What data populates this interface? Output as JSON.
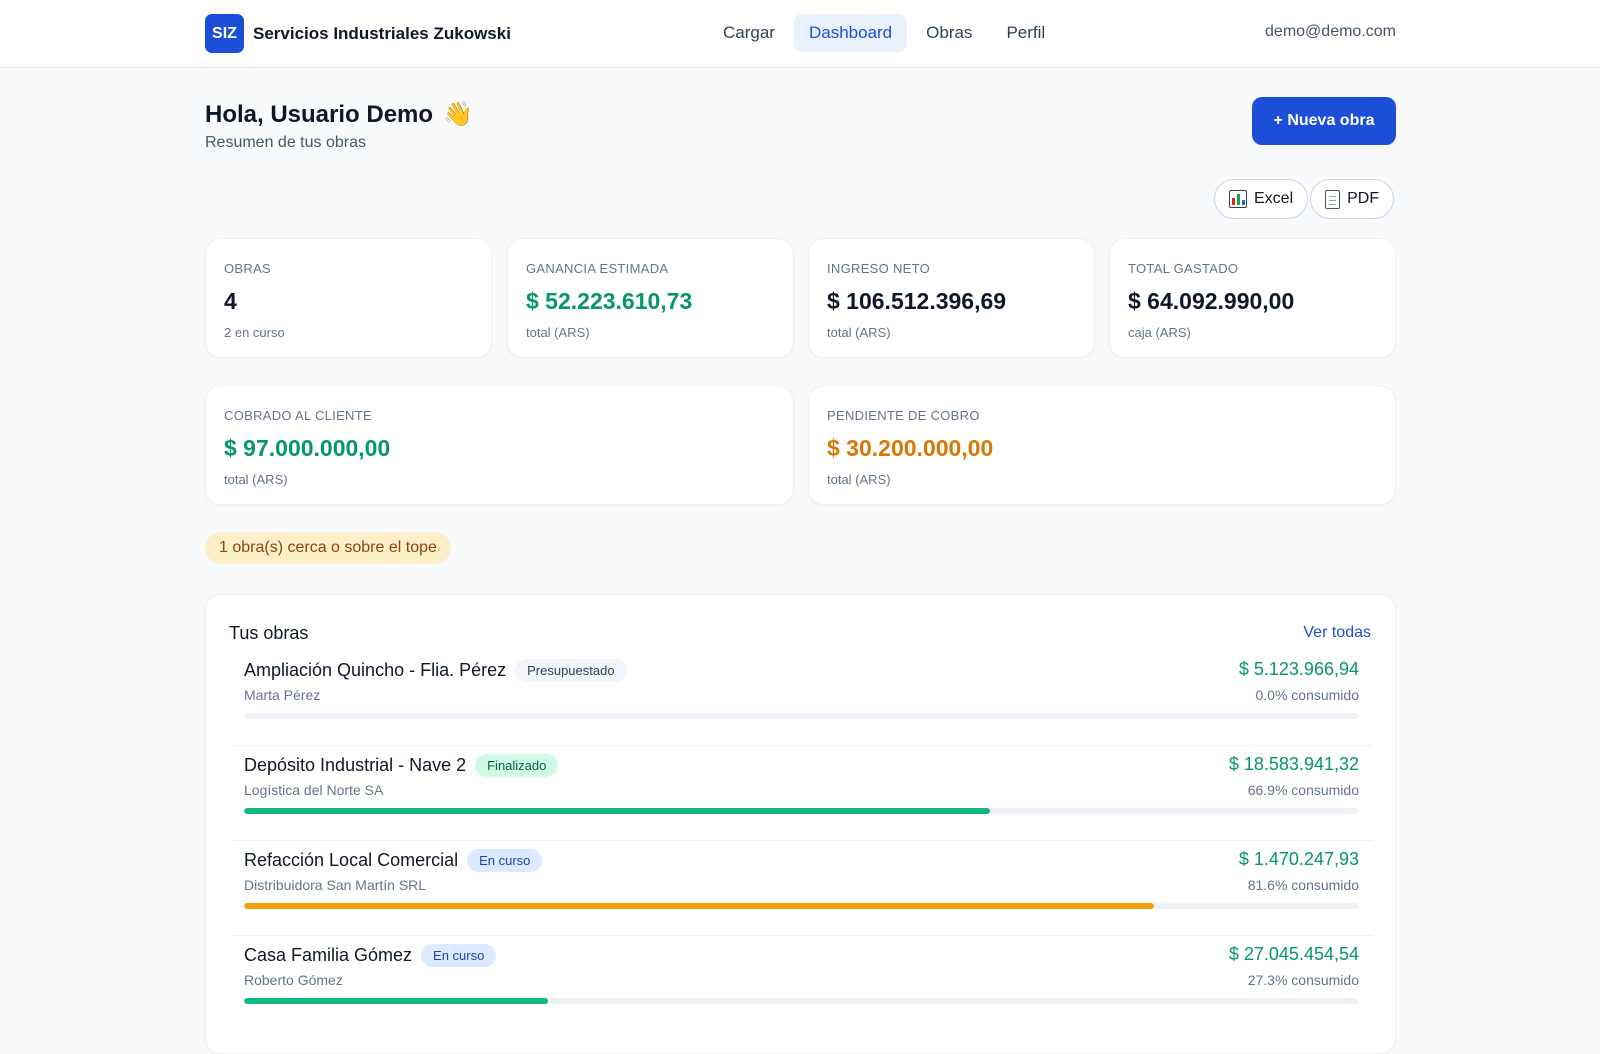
{
  "header": {
    "logo": "SIZ",
    "brand": "Servicios Industriales Zukowski",
    "nav": [
      "Cargar",
      "Dashboard",
      "Obras",
      "Perfil"
    ],
    "active_nav": "Dashboard",
    "user_email": "demo@demo.com"
  },
  "greeting": {
    "title": "Hola, Usuario Demo",
    "emoji": "👋",
    "subtitle": "Resumen de tus obras"
  },
  "actions": {
    "new_obra": "+ Nueva obra",
    "export_excel": "Excel",
    "export_pdf": "PDF"
  },
  "stats": [
    {
      "label": "OBRAS",
      "value": "4",
      "sub": "2 en curso",
      "color": "#0f172a"
    },
    {
      "label": "GANANCIA ESTIMADA",
      "value": "$ 52.223.610,73",
      "sub": "total (ARS)",
      "color": "#059669"
    },
    {
      "label": "INGRESO NETO",
      "value": "$ 106.512.396,69",
      "sub": "total (ARS)",
      "color": "#0f172a"
    },
    {
      "label": "TOTAL GASTADO",
      "value": "$ 64.092.990,00",
      "sub": "caja (ARS)",
      "color": "#0f172a"
    }
  ],
  "stats2": [
    {
      "label": "COBRADO AL CLIENTE",
      "value": "$ 97.000.000,00",
      "sub": "total (ARS)",
      "color": "#059669"
    },
    {
      "label": "PENDIENTE DE COBRO",
      "value": "$ 30.200.000,00",
      "sub": "total (ARS)",
      "color": "#d97706"
    }
  ],
  "alert": "1 obra(s) cerca o sobre el tope",
  "obras_panel": {
    "title": "Tus obras",
    "link": "Ver todas",
    "items": [
      {
        "name": "Ampliación Quincho - Flia. Pérez",
        "status": "Presupuestado",
        "client": "Marta Pérez",
        "amount": "$ 5.123.966,94",
        "consumed": "0.0% consumido",
        "progress": 0.0,
        "bar_color": "#10b981"
      },
      {
        "name": "Depósito Industrial - Nave 2",
        "status": "Finalizado",
        "client": "Logística del Norte SA",
        "amount": "$ 18.583.941,32",
        "consumed": "66.9% consumido",
        "progress": 66.9,
        "bar_color": "#10b981"
      },
      {
        "name": "Refacción Local Comercial",
        "status": "En curso",
        "client": "Distribuidora San Martín SRL",
        "amount": "$ 1.470.247,93",
        "consumed": "81.6% consumido",
        "progress": 81.6,
        "bar_color": "#f59e0b"
      },
      {
        "name": "Casa Familia Gómez",
        "status": "En curso",
        "client": "Roberto Gómez",
        "amount": "$ 27.045.454,54",
        "consumed": "27.3% consumido",
        "progress": 27.3,
        "bar_color": "#10b981"
      }
    ]
  }
}
